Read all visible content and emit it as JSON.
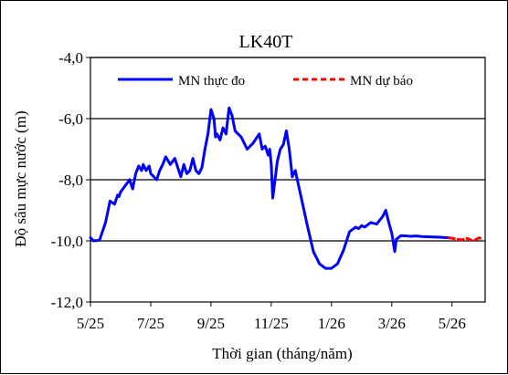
{
  "chart_data": {
    "type": "line",
    "title": "LK40T",
    "xlabel": "Thời gian  (tháng/năm)",
    "ylabel": "Độ sâu mực nước (m)",
    "ylim": [
      -12.0,
      -4.0
    ],
    "y_reversed": false,
    "y_ticks": [
      -4.0,
      -6.0,
      -8.0,
      -10.0,
      -12.0
    ],
    "y_tick_labels": [
      "-4,0",
      "-6,0",
      "-8,0",
      "-10,0",
      "-12,0"
    ],
    "x_tick_labels": [
      "5/25",
      "7/25",
      "9/25",
      "11/25",
      "1/26",
      "3/26",
      "5/26"
    ],
    "x_tick_months": [
      0,
      2,
      4,
      6,
      8,
      10,
      12
    ],
    "xlim_months": [
      0,
      13.1
    ],
    "grid": "horizontal",
    "legend_position": "top",
    "series": [
      {
        "name": "MN thực đo",
        "color": "#0000ff",
        "style": "solid",
        "x": [
          0,
          0.1,
          0.3,
          0.5,
          0.65,
          0.8,
          0.9,
          0.95,
          1.0,
          1.15,
          1.3,
          1.4,
          1.5,
          1.6,
          1.7,
          1.75,
          1.85,
          1.95,
          2.0,
          2.1,
          2.2,
          2.3,
          2.4,
          2.5,
          2.65,
          2.8,
          2.9,
          3.0,
          3.1,
          3.2,
          3.3,
          3.4,
          3.5,
          3.6,
          3.7,
          3.8,
          3.9,
          4.0,
          4.1,
          4.15,
          4.2,
          4.3,
          4.4,
          4.5,
          4.6,
          4.7,
          4.8,
          4.9,
          5.0,
          5.2,
          5.4,
          5.6,
          5.7,
          5.8,
          5.9,
          5.95,
          6.0,
          6.05,
          6.1,
          6.2,
          6.3,
          6.4,
          6.5,
          6.6,
          6.7,
          6.8,
          7.0,
          7.2,
          7.4,
          7.6,
          7.8,
          8.0,
          8.2,
          8.4,
          8.6,
          8.8,
          8.9,
          9.0,
          9.1,
          9.3,
          9.5,
          9.7,
          9.8,
          9.9,
          10.0,
          10.1,
          10.15,
          10.3,
          10.5,
          10.6,
          10.8,
          11.0,
          11.3,
          11.6,
          11.9
        ],
        "values": [
          -9.9,
          -10.0,
          -9.98,
          -9.4,
          -8.7,
          -8.8,
          -8.5,
          -8.55,
          -8.4,
          -8.2,
          -8.0,
          -8.3,
          -7.8,
          -7.55,
          -7.7,
          -7.5,
          -7.7,
          -7.55,
          -7.8,
          -7.9,
          -8.0,
          -7.7,
          -7.5,
          -7.25,
          -7.5,
          -7.3,
          -7.6,
          -7.9,
          -7.5,
          -7.8,
          -7.7,
          -7.3,
          -7.7,
          -7.8,
          -7.6,
          -7.0,
          -6.5,
          -5.7,
          -6.0,
          -6.6,
          -6.5,
          -6.7,
          -6.3,
          -6.5,
          -5.65,
          -5.9,
          -6.4,
          -6.5,
          -6.6,
          -7.0,
          -6.8,
          -6.5,
          -7.0,
          -6.9,
          -7.2,
          -7.0,
          -7.5,
          -8.6,
          -8.2,
          -7.4,
          -7.0,
          -6.85,
          -6.4,
          -7.0,
          -7.9,
          -7.7,
          -8.6,
          -9.5,
          -10.35,
          -10.75,
          -10.9,
          -10.9,
          -10.75,
          -10.3,
          -9.7,
          -9.55,
          -9.6,
          -9.5,
          -9.55,
          -9.4,
          -9.45,
          -9.2,
          -9.0,
          -9.4,
          -9.75,
          -10.35,
          -9.95,
          -9.83,
          -9.84,
          -9.85,
          -9.84,
          -9.86,
          -9.87,
          -9.88,
          -9.9
        ]
      },
      {
        "name": "MN dự báo",
        "color": "#ff0000",
        "style": "dashed",
        "x": [
          11.9,
          12.1,
          12.3,
          12.5,
          12.7,
          12.9,
          13.0
        ],
        "values": [
          -9.9,
          -9.93,
          -9.97,
          -9.92,
          -10.0,
          -9.9,
          -9.95
        ]
      }
    ]
  }
}
